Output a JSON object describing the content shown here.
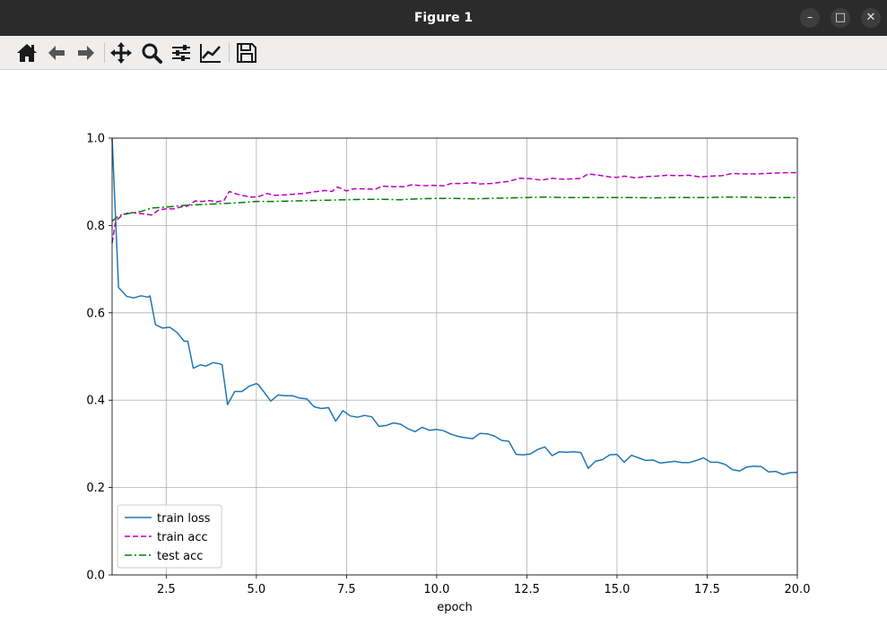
{
  "window": {
    "title": "Figure 1",
    "controls": {
      "minimize": "–",
      "maximize": "□",
      "close": "✕"
    }
  },
  "toolbar": {
    "buttons": [
      "home-icon",
      "back-arrow-icon",
      "forward-arrow-icon",
      "move-pan-icon",
      "zoom-icon",
      "configure-subplots-icon",
      "edit-axis-icon",
      "save-icon"
    ]
  },
  "chart_data": {
    "type": "line",
    "title": "",
    "xlabel": "epoch",
    "ylabel": "",
    "xlim": [
      1.0,
      20.0
    ],
    "ylim": [
      0.0,
      1.0
    ],
    "x_ticks": [
      "2.5",
      "5.0",
      "7.5",
      "10.0",
      "12.5",
      "15.0",
      "17.5",
      "20.0"
    ],
    "y_ticks": [
      "0.0",
      "0.2",
      "0.4",
      "0.6",
      "0.8",
      "1.0"
    ],
    "grid": true,
    "legend_position": "lower-left",
    "series": [
      {
        "name": "train loss",
        "color": "#1f77b4",
        "style": "solid",
        "points": [
          [
            1.0,
            1.0
          ],
          [
            1.18,
            0.658
          ],
          [
            1.4,
            0.638
          ],
          [
            1.6,
            0.634
          ],
          [
            1.8,
            0.639
          ],
          [
            2.0,
            0.636
          ],
          [
            2.05,
            0.639
          ],
          [
            2.2,
            0.573
          ],
          [
            2.4,
            0.565
          ],
          [
            2.6,
            0.567
          ],
          [
            2.8,
            0.555
          ],
          [
            3.0,
            0.535
          ],
          [
            3.1,
            0.535
          ],
          [
            3.25,
            0.473
          ],
          [
            3.45,
            0.481
          ],
          [
            3.6,
            0.478
          ],
          [
            3.8,
            0.486
          ],
          [
            4.0,
            0.483
          ],
          [
            4.05,
            0.481
          ],
          [
            4.2,
            0.39
          ],
          [
            4.4,
            0.42
          ],
          [
            4.6,
            0.42
          ],
          [
            4.8,
            0.432
          ],
          [
            5.0,
            0.438
          ],
          [
            5.05,
            0.436
          ],
          [
            5.2,
            0.42
          ],
          [
            5.4,
            0.398
          ],
          [
            5.6,
            0.412
          ],
          [
            5.8,
            0.41
          ],
          [
            6.0,
            0.41
          ],
          [
            6.2,
            0.405
          ],
          [
            6.4,
            0.403
          ],
          [
            6.6,
            0.385
          ],
          [
            6.8,
            0.381
          ],
          [
            7.0,
            0.383
          ],
          [
            7.2,
            0.352
          ],
          [
            7.4,
            0.376
          ],
          [
            7.6,
            0.364
          ],
          [
            7.8,
            0.361
          ],
          [
            8.0,
            0.365
          ],
          [
            8.2,
            0.362
          ],
          [
            8.4,
            0.34
          ],
          [
            8.6,
            0.342
          ],
          [
            8.8,
            0.348
          ],
          [
            9.0,
            0.345
          ],
          [
            9.2,
            0.335
          ],
          [
            9.4,
            0.328
          ],
          [
            9.6,
            0.338
          ],
          [
            9.8,
            0.331
          ],
          [
            10.0,
            0.333
          ],
          [
            10.2,
            0.33
          ],
          [
            10.4,
            0.322
          ],
          [
            10.6,
            0.317
          ],
          [
            10.8,
            0.314
          ],
          [
            11.0,
            0.312
          ],
          [
            11.2,
            0.324
          ],
          [
            11.4,
            0.323
          ],
          [
            11.6,
            0.318
          ],
          [
            11.8,
            0.308
          ],
          [
            12.0,
            0.306
          ],
          [
            12.2,
            0.276
          ],
          [
            12.4,
            0.275
          ],
          [
            12.6,
            0.277
          ],
          [
            12.8,
            0.287
          ],
          [
            13.0,
            0.293
          ],
          [
            13.2,
            0.273
          ],
          [
            13.4,
            0.282
          ],
          [
            13.6,
            0.281
          ],
          [
            13.8,
            0.282
          ],
          [
            14.0,
            0.28
          ],
          [
            14.2,
            0.244
          ],
          [
            14.4,
            0.26
          ],
          [
            14.6,
            0.264
          ],
          [
            14.8,
            0.275
          ],
          [
            15.0,
            0.276
          ],
          [
            15.2,
            0.258
          ],
          [
            15.4,
            0.274
          ],
          [
            15.6,
            0.268
          ],
          [
            15.8,
            0.262
          ],
          [
            16.0,
            0.263
          ],
          [
            16.2,
            0.256
          ],
          [
            16.4,
            0.258
          ],
          [
            16.6,
            0.26
          ],
          [
            16.8,
            0.257
          ],
          [
            17.0,
            0.257
          ],
          [
            17.2,
            0.262
          ],
          [
            17.4,
            0.268
          ],
          [
            17.6,
            0.258
          ],
          [
            17.8,
            0.258
          ],
          [
            18.0,
            0.253
          ],
          [
            18.2,
            0.241
          ],
          [
            18.4,
            0.238
          ],
          [
            18.6,
            0.247
          ],
          [
            18.8,
            0.249
          ],
          [
            19.0,
            0.248
          ],
          [
            19.2,
            0.236
          ],
          [
            19.4,
            0.237
          ],
          [
            19.6,
            0.23
          ],
          [
            19.8,
            0.234
          ],
          [
            20.0,
            0.235
          ]
        ]
      },
      {
        "name": "train acc",
        "color": "#bf00bf",
        "style": "dashed",
        "points": [
          [
            1.0,
            0.76
          ],
          [
            1.1,
            0.81
          ],
          [
            1.3,
            0.825
          ],
          [
            1.5,
            0.83
          ],
          [
            1.7,
            0.828
          ],
          [
            1.9,
            0.826
          ],
          [
            2.1,
            0.824
          ],
          [
            2.3,
            0.836
          ],
          [
            2.5,
            0.838
          ],
          [
            2.7,
            0.838
          ],
          [
            2.9,
            0.842
          ],
          [
            3.1,
            0.845
          ],
          [
            3.3,
            0.856
          ],
          [
            3.5,
            0.855
          ],
          [
            3.7,
            0.857
          ],
          [
            3.9,
            0.854
          ],
          [
            4.1,
            0.857
          ],
          [
            4.25,
            0.878
          ],
          [
            4.45,
            0.872
          ],
          [
            4.65,
            0.868
          ],
          [
            4.85,
            0.865
          ],
          [
            5.05,
            0.866
          ],
          [
            5.3,
            0.873
          ],
          [
            5.5,
            0.869
          ],
          [
            5.8,
            0.87
          ],
          [
            6.1,
            0.872
          ],
          [
            6.3,
            0.873
          ],
          [
            6.6,
            0.877
          ],
          [
            6.9,
            0.88
          ],
          [
            7.1,
            0.878
          ],
          [
            7.25,
            0.888
          ],
          [
            7.5,
            0.879
          ],
          [
            7.7,
            0.884
          ],
          [
            8.0,
            0.884
          ],
          [
            8.3,
            0.883
          ],
          [
            8.5,
            0.89
          ],
          [
            8.8,
            0.889
          ],
          [
            9.1,
            0.889
          ],
          [
            9.3,
            0.893
          ],
          [
            9.6,
            0.891
          ],
          [
            9.9,
            0.892
          ],
          [
            10.2,
            0.891
          ],
          [
            10.4,
            0.896
          ],
          [
            10.7,
            0.896
          ],
          [
            11.0,
            0.898
          ],
          [
            11.2,
            0.895
          ],
          [
            11.5,
            0.896
          ],
          [
            11.8,
            0.899
          ],
          [
            12.0,
            0.901
          ],
          [
            12.3,
            0.908
          ],
          [
            12.6,
            0.907
          ],
          [
            12.9,
            0.904
          ],
          [
            13.2,
            0.908
          ],
          [
            13.5,
            0.906
          ],
          [
            13.8,
            0.907
          ],
          [
            14.0,
            0.908
          ],
          [
            14.2,
            0.918
          ],
          [
            14.5,
            0.915
          ],
          [
            14.8,
            0.911
          ],
          [
            15.0,
            0.91
          ],
          [
            15.2,
            0.913
          ],
          [
            15.5,
            0.909
          ],
          [
            15.8,
            0.912
          ],
          [
            16.1,
            0.913
          ],
          [
            16.4,
            0.915
          ],
          [
            16.7,
            0.914
          ],
          [
            17.0,
            0.915
          ],
          [
            17.3,
            0.911
          ],
          [
            17.6,
            0.913
          ],
          [
            17.9,
            0.914
          ],
          [
            18.2,
            0.919
          ],
          [
            18.5,
            0.918
          ],
          [
            18.8,
            0.918
          ],
          [
            19.1,
            0.919
          ],
          [
            19.4,
            0.92
          ],
          [
            19.7,
            0.921
          ],
          [
            20.0,
            0.921
          ]
        ]
      },
      {
        "name": "test acc",
        "color": "#008000",
        "style": "dashdot",
        "points": [
          [
            1.0,
            0.81
          ],
          [
            1.2,
            0.823
          ],
          [
            1.5,
            0.828
          ],
          [
            1.8,
            0.832
          ],
          [
            2.1,
            0.84
          ],
          [
            2.5,
            0.842
          ],
          [
            3.0,
            0.846
          ],
          [
            3.5,
            0.848
          ],
          [
            4.0,
            0.85
          ],
          [
            4.5,
            0.852
          ],
          [
            5.0,
            0.855
          ],
          [
            5.5,
            0.855
          ],
          [
            6.0,
            0.856
          ],
          [
            6.5,
            0.857
          ],
          [
            7.0,
            0.858
          ],
          [
            7.5,
            0.859
          ],
          [
            8.0,
            0.86
          ],
          [
            8.5,
            0.86
          ],
          [
            9.0,
            0.859
          ],
          [
            9.5,
            0.861
          ],
          [
            10.0,
            0.862
          ],
          [
            10.5,
            0.862
          ],
          [
            11.0,
            0.861
          ],
          [
            11.5,
            0.862
          ],
          [
            12.0,
            0.863
          ],
          [
            12.5,
            0.864
          ],
          [
            13.0,
            0.865
          ],
          [
            13.5,
            0.864
          ],
          [
            14.0,
            0.864
          ],
          [
            14.5,
            0.864
          ],
          [
            15.0,
            0.864
          ],
          [
            15.5,
            0.864
          ],
          [
            16.0,
            0.863
          ],
          [
            16.5,
            0.864
          ],
          [
            17.0,
            0.864
          ],
          [
            17.5,
            0.864
          ],
          [
            18.0,
            0.865
          ],
          [
            18.5,
            0.865
          ],
          [
            19.0,
            0.864
          ],
          [
            19.5,
            0.864
          ],
          [
            20.0,
            0.864
          ]
        ]
      }
    ]
  }
}
